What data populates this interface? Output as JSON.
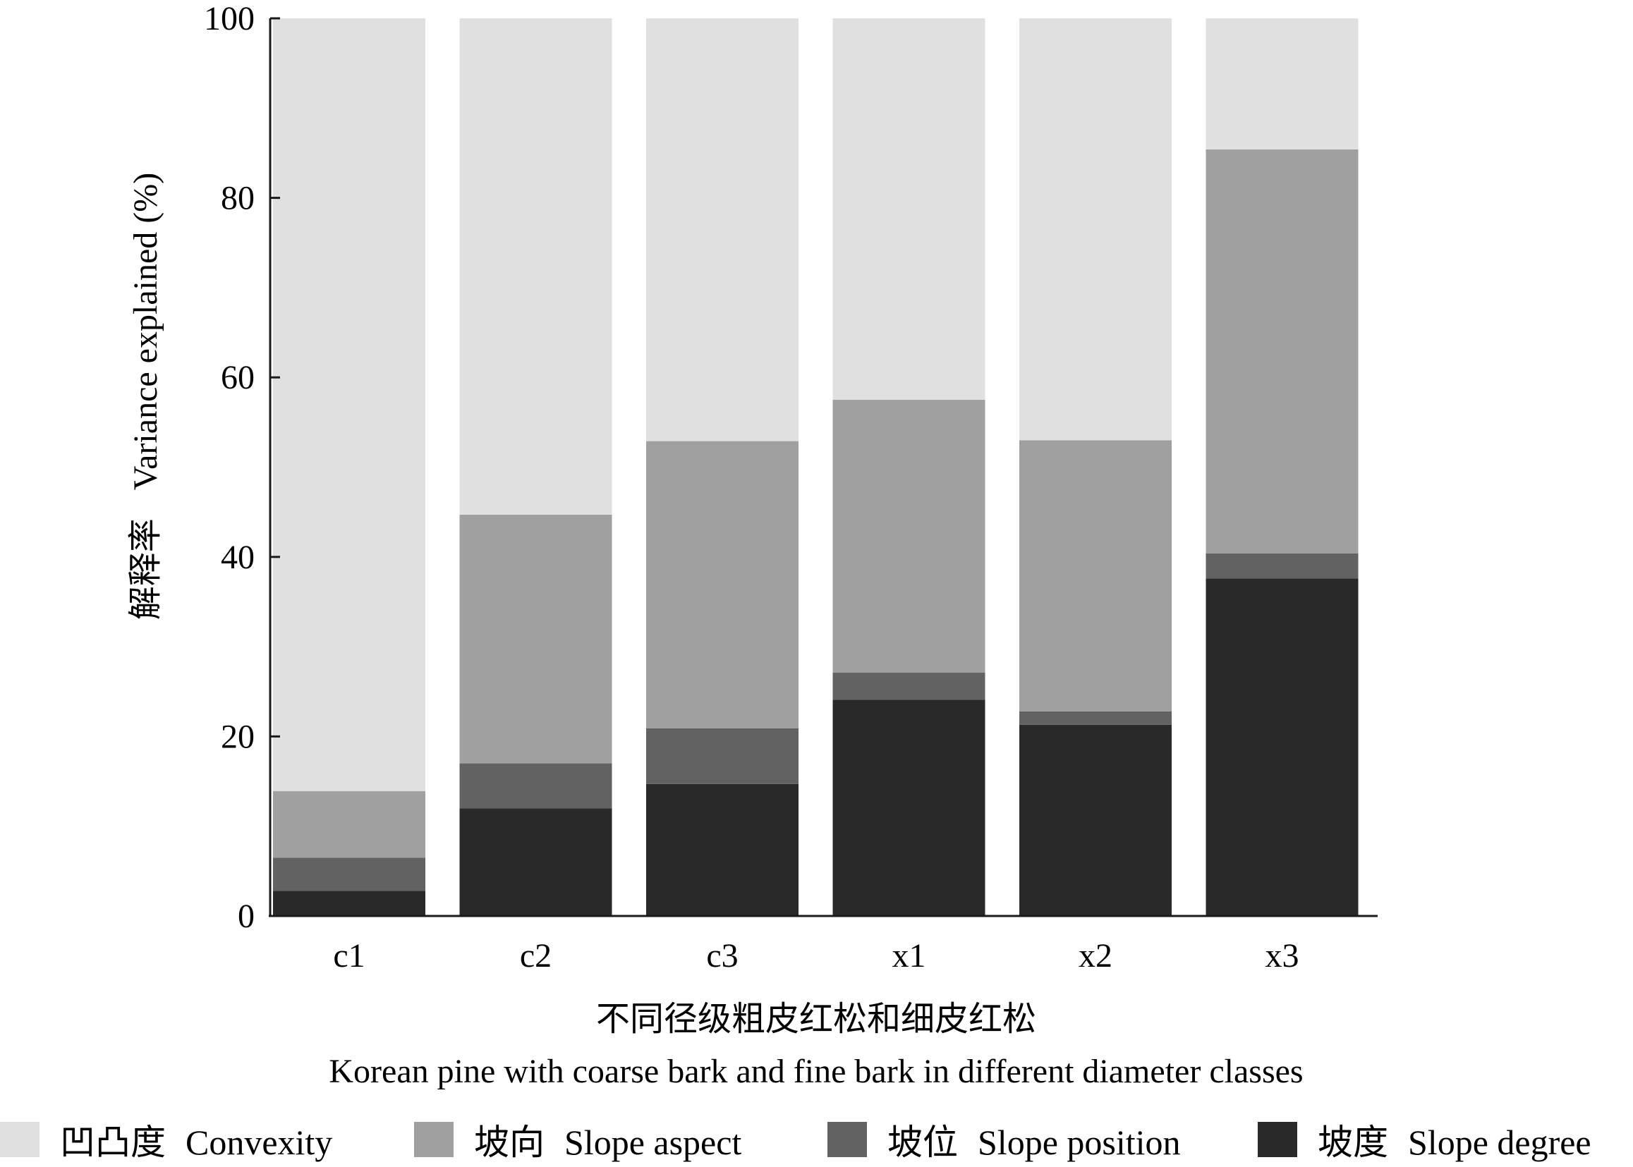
{
  "chart_data": {
    "type": "bar",
    "stacked": true,
    "categories": [
      "c1",
      "c2",
      "c3",
      "x1",
      "x2",
      "x3"
    ],
    "series": [
      {
        "name": "坡度 Slope degree",
        "name_cn": "坡度",
        "name_en": "Slope degree",
        "color": "#292929",
        "values": [
          2.8,
          12.0,
          14.7,
          24.1,
          21.3,
          37.6
        ]
      },
      {
        "name": "坡位 Slope position",
        "name_cn": "坡位",
        "name_en": "Slope position",
        "color": "#626262",
        "values": [
          3.7,
          5.0,
          6.2,
          3.0,
          1.5,
          2.8
        ]
      },
      {
        "name": "坡向 Slope aspect",
        "name_cn": "坡向",
        "name_en": "Slope aspect",
        "color": "#a0a0a0",
        "values": [
          7.4,
          27.7,
          32.0,
          30.4,
          30.2,
          45.0
        ]
      },
      {
        "name": "凹凸度 Convexity",
        "name_cn": "凹凸度",
        "name_en": "Convexity",
        "color": "#e0e0e0",
        "values": [
          86.1,
          55.3,
          47.1,
          42.5,
          47.0,
          14.6
        ]
      }
    ],
    "legend_order": [
      3,
      2,
      1,
      0
    ],
    "ylabel_cn": "解释率",
    "ylabel_en": "Variance explained (%)",
    "xlabel_cn": "不同径级粗皮红松和细皮红松",
    "xlabel_en": "Korean pine with coarse bark and fine bark in different diameter classes",
    "ylim": [
      0,
      100
    ],
    "yticks": [
      0,
      20,
      40,
      60,
      80,
      100
    ],
    "grid": false,
    "legend_position": "bottom"
  }
}
